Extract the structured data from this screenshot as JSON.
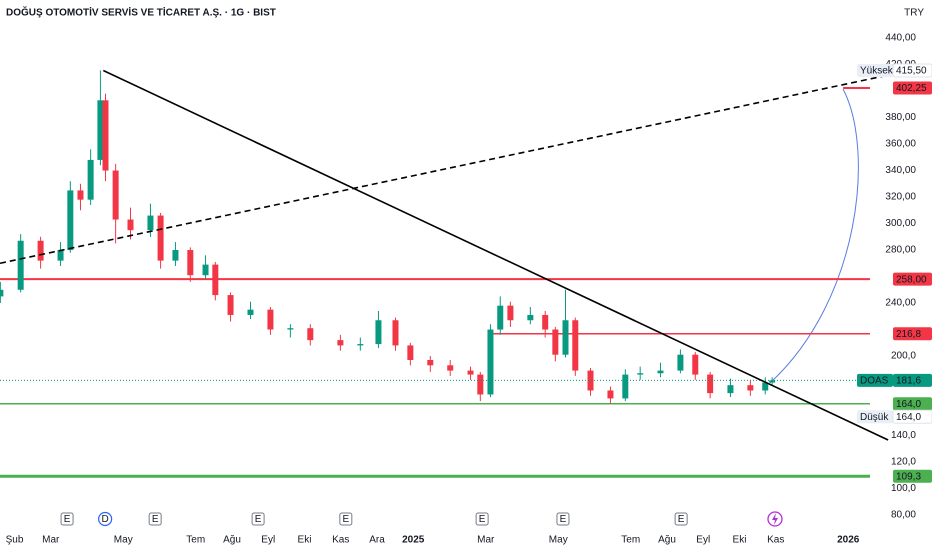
{
  "chart_data": {
    "type": "candlestick",
    "title": "DOĞUŞ OTOMOTİV SERVİS VE TİCARET A.Ş. · 1G · BIST",
    "currency": "TRY",
    "up_color": "#089981",
    "down_color": "#f23645",
    "xlim": [
      0.6,
      24.6
    ],
    "ylim": [
      68.7,
      468.7
    ],
    "xticks": [
      {
        "value": 1,
        "label": "Şub"
      },
      {
        "value": 2,
        "label": "Mar"
      },
      {
        "value": 4,
        "label": "May"
      },
      {
        "value": 6,
        "label": "Tem"
      },
      {
        "value": 7,
        "label": "Ağu"
      },
      {
        "value": 8,
        "label": "Eyl"
      },
      {
        "value": 9,
        "label": "Eki"
      },
      {
        "value": 10,
        "label": "Kas"
      },
      {
        "value": 11,
        "label": "Ara"
      },
      {
        "value": 12,
        "label": "2025"
      },
      {
        "value": 14,
        "label": "Mar"
      },
      {
        "value": 16,
        "label": "May"
      },
      {
        "value": 18,
        "label": "Tem"
      },
      {
        "value": 19,
        "label": "Ağu"
      },
      {
        "value": 20,
        "label": "Eyl"
      },
      {
        "value": 21,
        "label": "Eki"
      },
      {
        "value": 22,
        "label": "Kas"
      },
      {
        "value": 24,
        "label": "2026"
      }
    ],
    "yticks": [
      {
        "value": 440,
        "label": "440,00"
      },
      {
        "value": 420,
        "label": "420,00"
      },
      {
        "value": 380,
        "label": "380,00"
      },
      {
        "value": 360,
        "label": "360,00"
      },
      {
        "value": 340,
        "label": "340,00"
      },
      {
        "value": 320,
        "label": "320,00"
      },
      {
        "value": 300,
        "label": "300,00"
      },
      {
        "value": 280,
        "label": "280,00"
      },
      {
        "value": 240,
        "label": "240,00"
      },
      {
        "value": 200,
        "label": "200,0"
      },
      {
        "value": 140,
        "label": "140,0"
      },
      {
        "value": 120,
        "label": "120,0"
      },
      {
        "value": 100,
        "label": "100,0"
      },
      {
        "value": 80,
        "label": "80,00"
      }
    ],
    "x": [
      0.61,
      1.17,
      1.72,
      2.27,
      2.54,
      2.82,
      3.1,
      3.37,
      3.51,
      3.79,
      4.2,
      4.75,
      5.03,
      5.44,
      5.85,
      6.27,
      6.54,
      6.96,
      7.51,
      8.06,
      8.61,
      9.16,
      9.99,
      10.54,
      11.04,
      11.51,
      11.92,
      12.47,
      13.02,
      13.58,
      13.85,
      14.13,
      14.4,
      14.68,
      15.23,
      15.64,
      15.92,
      16.2,
      16.47,
      16.89,
      17.44,
      17.85,
      18.26,
      18.82,
      19.37,
      19.78,
      20.19,
      20.75,
      21.3,
      21.71,
      21.9
    ],
    "open": [
      245,
      250,
      287,
      272,
      280,
      325,
      318,
      348,
      393,
      340,
      303,
      295,
      306,
      272,
      280,
      261,
      269,
      246,
      231,
      235,
      220,
      221,
      212,
      208,
      209,
      227,
      208,
      197,
      193,
      189,
      186,
      171,
      220,
      238,
      227,
      231,
      220,
      201,
      227,
      189,
      174,
      168,
      186,
      187,
      189,
      201,
      186,
      172,
      178,
      174,
      180
    ],
    "high": [
      256,
      292,
      290,
      286,
      332,
      330,
      356,
      415.5,
      398,
      345,
      312,
      315,
      308,
      286,
      282,
      276,
      271,
      248,
      241,
      237,
      224,
      224,
      216,
      214,
      234,
      229,
      210,
      200,
      197,
      192,
      188,
      224,
      245,
      241,
      237,
      234,
      222,
      250,
      229,
      191,
      177,
      190,
      192,
      195,
      205,
      203,
      188,
      183,
      182,
      184,
      184
    ],
    "low": [
      240,
      248,
      266,
      268,
      278,
      310,
      314,
      344,
      332,
      285,
      288,
      290,
      266,
      268,
      256,
      258,
      242,
      226,
      228,
      216,
      214,
      208,
      204,
      204,
      206,
      204,
      193,
      188,
      185,
      182,
      166,
      169,
      216,
      222,
      224,
      214,
      196,
      199,
      185,
      170,
      164,
      166,
      182,
      184,
      187,
      182,
      168,
      169,
      170,
      171,
      178
    ],
    "close": [
      250,
      287,
      272,
      280,
      325,
      318,
      348,
      393,
      340,
      303,
      295,
      306,
      272,
      280,
      261,
      269,
      246,
      231,
      235,
      220,
      221,
      212,
      208,
      209,
      227,
      208,
      197,
      193,
      189,
      186,
      171,
      220,
      238,
      227,
      231,
      220,
      201,
      227,
      189,
      174,
      168,
      186,
      187,
      189,
      201,
      186,
      172,
      178,
      174,
      180,
      181.6
    ],
    "levels": [
      {
        "value": 402.25,
        "label": "402,25",
        "color": "#f23645",
        "width": 2,
        "x0": 23.86
      },
      {
        "value": 258,
        "label": "258,00",
        "color": "#f23645",
        "width": 2
      },
      {
        "value": 216.8,
        "label": "216,8",
        "color": "#f23645",
        "width": 1.5,
        "x0": 14.1
      },
      {
        "value": 164,
        "label": "164,0",
        "color": "#4caf50",
        "width": 1.5
      },
      {
        "value": 109.3,
        "label": "109,3",
        "color": "#4caf50",
        "width": 3
      }
    ],
    "price_tags": [
      {
        "name": "Yüksek",
        "value": 415.5,
        "label": "415,50"
      },
      {
        "name": "DOAS",
        "value": 181.6,
        "label": "181,6",
        "color": "#089981"
      },
      {
        "name": "Düşük",
        "value": 164,
        "label": "164,0"
      }
    ],
    "trendlines": [
      {
        "points": [
          [
            3.45,
            415.5
          ],
          [
            25.1,
            136.6
          ]
        ],
        "color": "#000000",
        "dashed": false
      },
      {
        "points": [
          [
            0.6,
            270
          ],
          [
            25.1,
            412
          ]
        ],
        "color": "#000000",
        "dashed": true
      }
    ],
    "events": [
      {
        "x": 2.45,
        "label": "E"
      },
      {
        "x": 3.5,
        "label": "D"
      },
      {
        "x": 4.88,
        "label": "E"
      },
      {
        "x": 7.72,
        "label": "E"
      },
      {
        "x": 10.14,
        "label": "E"
      },
      {
        "x": 13.9,
        "label": "E"
      },
      {
        "x": 16.13,
        "label": "E"
      },
      {
        "x": 19.39,
        "label": "E"
      }
    ]
  }
}
